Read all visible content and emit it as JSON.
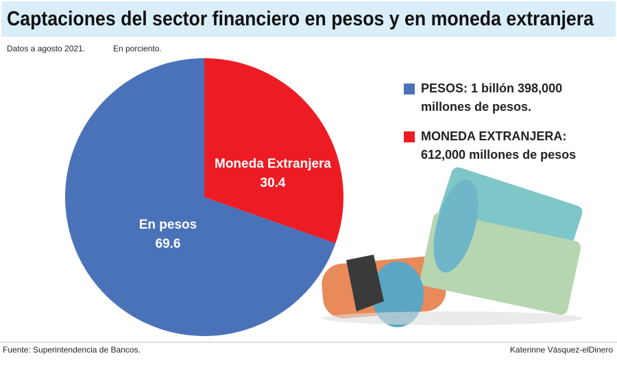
{
  "chart_data": {
    "type": "pie",
    "title": "Captaciones del sector financiero en pesos y en moneda extranjera",
    "subtitle": "Datos a agosto 2021.",
    "unit_note": "En porciento.",
    "categories": [
      "Moneda Extranjera",
      "En pesos"
    ],
    "values": [
      30.4,
      69.6
    ],
    "colors": [
      "#ed1c24",
      "#4a72b8"
    ],
    "legend": [
      {
        "color": "#4a72b8",
        "lines": [
          "PESOS: 1 billón 398,000",
          "millones de pesos."
        ]
      },
      {
        "color": "#ed1c24",
        "lines": [
          "MONEDA EXTRANJERA:",
          "612,000 millones de pesos"
        ]
      }
    ],
    "source": "Fuente: Superintendencia de Bancos.",
    "credit": "Katerinne Vásquez-elDinero"
  }
}
